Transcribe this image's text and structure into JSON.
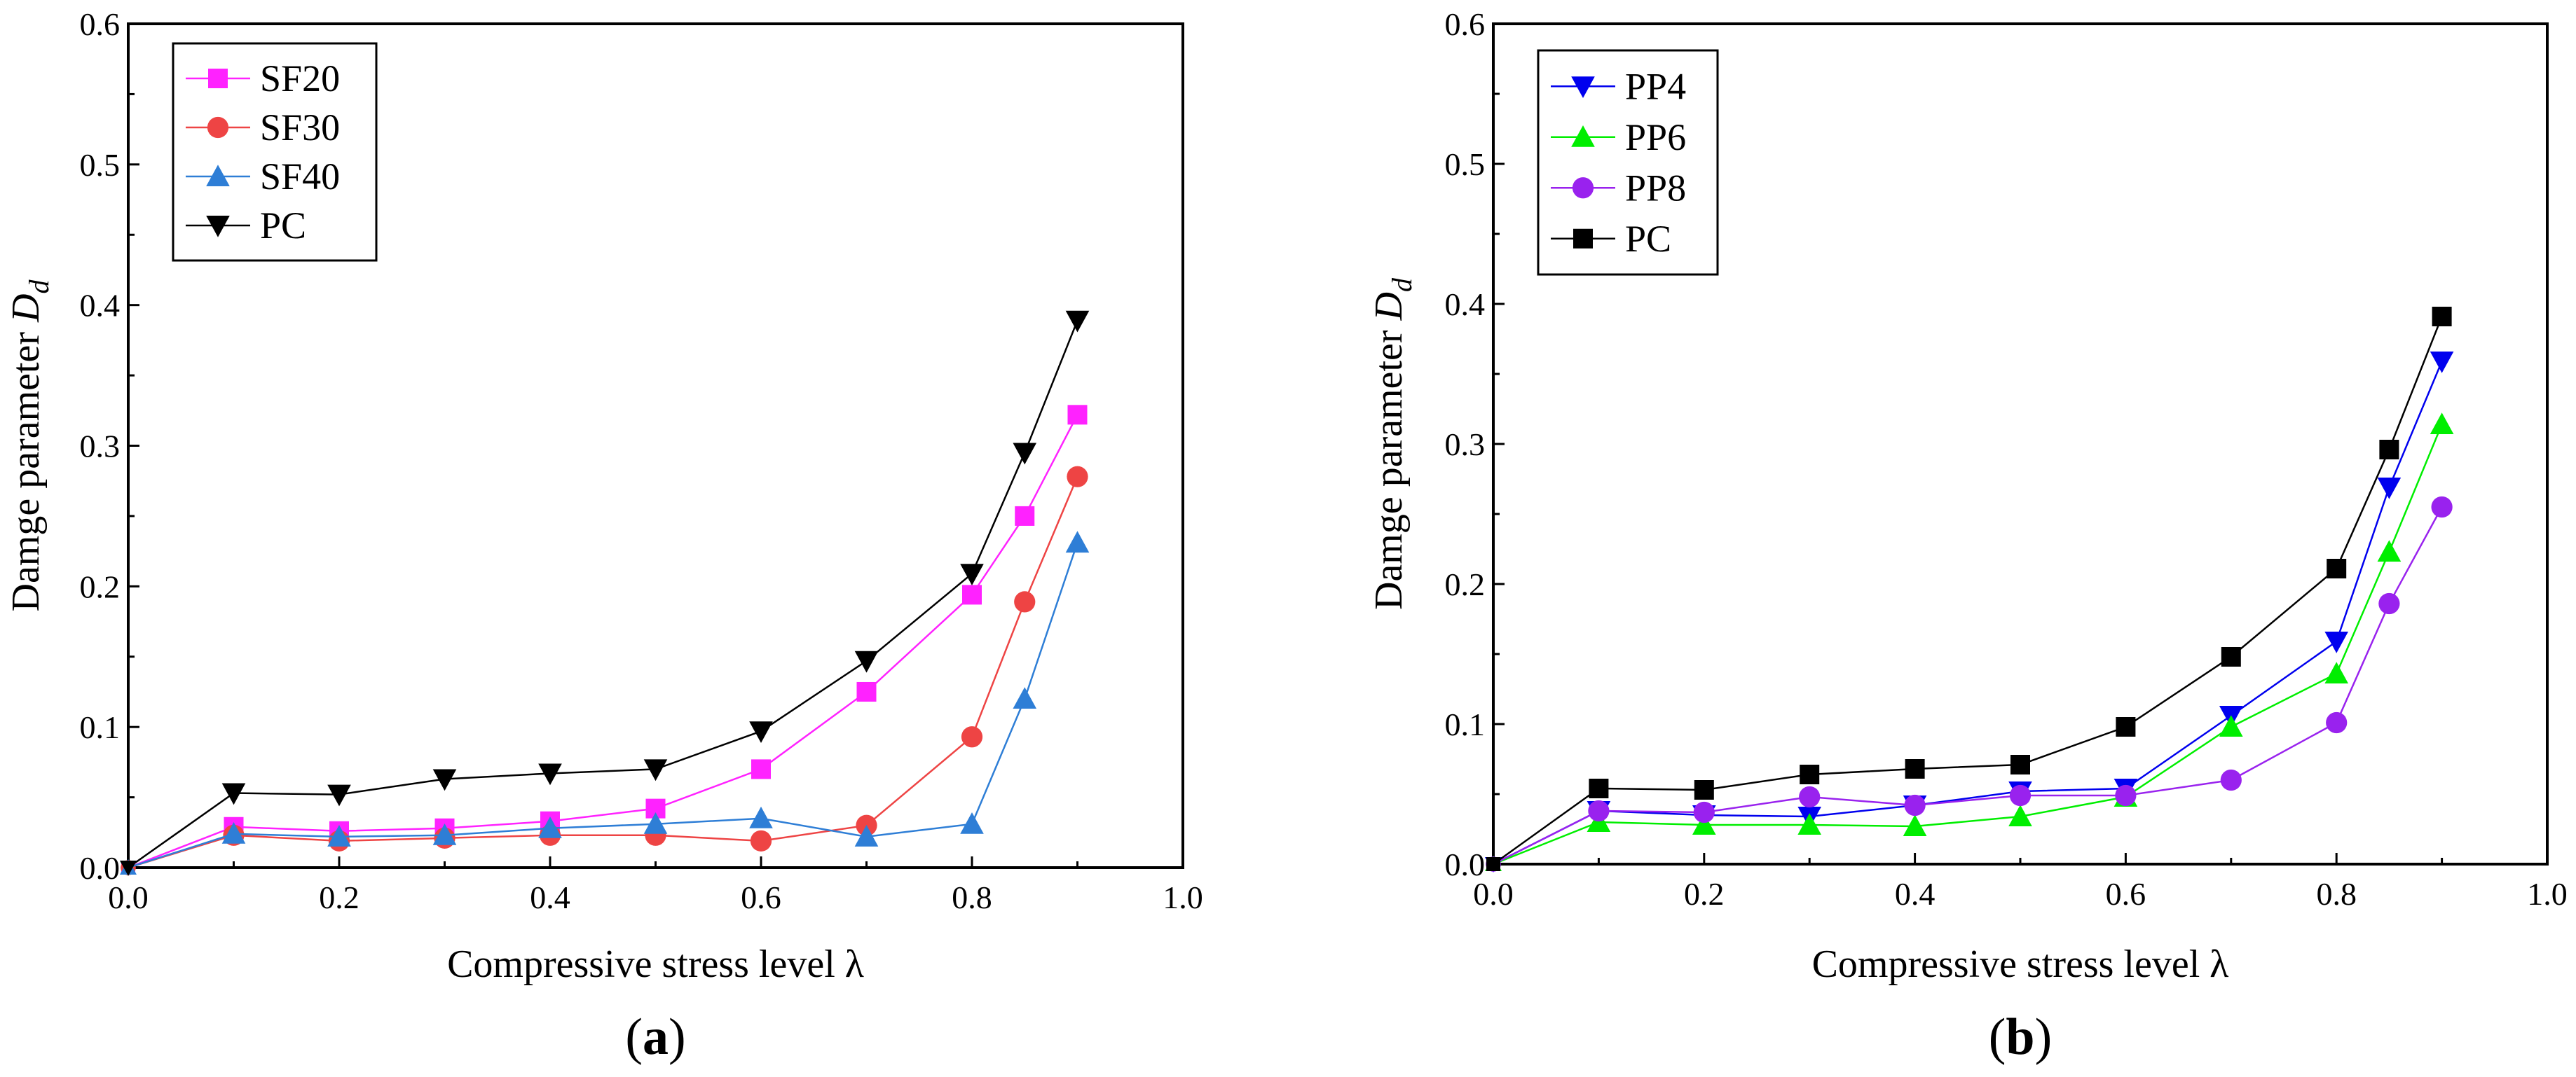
{
  "chart_data": [
    {
      "type": "line",
      "panel_label": {
        "open": "(",
        "letter": "a",
        "close": ")"
      },
      "xlabel": "Compressive stress level λ",
      "ylabel": {
        "text": "Damge parameter ",
        "symbol": "D",
        "subscript": "d"
      },
      "xlim": [
        0,
        1.0
      ],
      "ylim": [
        0,
        0.6
      ],
      "xticks": [
        "0.0",
        "0.2",
        "0.4",
        "0.6",
        "0.8",
        "1.0"
      ],
      "yticks": [
        "0.0",
        "0.1",
        "0.2",
        "0.3",
        "0.4",
        "0.5",
        "0.6"
      ],
      "legend_position": "top-left",
      "x": [
        0,
        0.1,
        0.2,
        0.3,
        0.4,
        0.5,
        0.6,
        0.7,
        0.8,
        0.85,
        0.9
      ],
      "series": [
        {
          "name": "SF20",
          "color": "#ff22ff",
          "marker": "square",
          "values": [
            0,
            0.029,
            0.026,
            0.028,
            0.033,
            0.042,
            0.07,
            0.125,
            0.194,
            0.25,
            0.322
          ]
        },
        {
          "name": "SF30",
          "color": "#ee4444",
          "marker": "circle",
          "values": [
            0,
            0.023,
            0.019,
            0.021,
            0.023,
            0.023,
            0.019,
            0.03,
            0.093,
            0.189,
            0.278
          ]
        },
        {
          "name": "SF40",
          "color": "#2e7ed6",
          "marker": "triangle-up",
          "values": [
            0,
            0.024,
            0.022,
            0.023,
            0.028,
            0.031,
            0.035,
            0.022,
            0.031,
            0.12,
            0.231
          ]
        },
        {
          "name": "PC",
          "color": "#000000",
          "marker": "triangle-down",
          "values": [
            0,
            0.053,
            0.052,
            0.063,
            0.067,
            0.07,
            0.097,
            0.147,
            0.209,
            0.295,
            0.389
          ]
        }
      ]
    },
    {
      "type": "line",
      "panel_label": {
        "open": "(",
        "letter": "b",
        "close": ")"
      },
      "xlabel": "Compressive stress level λ",
      "ylabel": {
        "text": "Damge parameter ",
        "symbol": "D",
        "subscript": "d"
      },
      "xlim": [
        0,
        1.0
      ],
      "ylim": [
        0,
        0.6
      ],
      "xticks": [
        "0.0",
        "0.2",
        "0.4",
        "0.6",
        "0.8",
        "1.0"
      ],
      "yticks": [
        "0.0",
        "0.1",
        "0.2",
        "0.3",
        "0.4",
        "0.5",
        "0.6"
      ],
      "legend_position": "top-left",
      "x": [
        0,
        0.1,
        0.2,
        0.3,
        0.4,
        0.5,
        0.6,
        0.7,
        0.8,
        0.85,
        0.9
      ],
      "series": [
        {
          "name": "PP4",
          "color": "#0000ee",
          "marker": "triangle-down",
          "values": [
            0,
            0.038,
            0.035,
            0.034,
            0.042,
            0.052,
            0.054,
            0.106,
            0.159,
            0.269,
            0.359
          ]
        },
        {
          "name": "PP6",
          "color": "#00ee00",
          "marker": "triangle-up",
          "values": [
            0,
            0.03,
            0.028,
            0.028,
            0.027,
            0.034,
            0.048,
            0.098,
            0.136,
            0.223,
            0.314
          ]
        },
        {
          "name": "PP8",
          "color": "#9922ee",
          "marker": "circle",
          "values": [
            0,
            0.038,
            0.037,
            0.048,
            0.042,
            0.049,
            0.049,
            0.06,
            0.101,
            0.186,
            0.255
          ]
        },
        {
          "name": "PC",
          "color": "#000000",
          "marker": "square",
          "values": [
            0,
            0.054,
            0.053,
            0.064,
            0.068,
            0.071,
            0.098,
            0.148,
            0.211,
            0.296,
            0.391
          ]
        }
      ]
    }
  ]
}
